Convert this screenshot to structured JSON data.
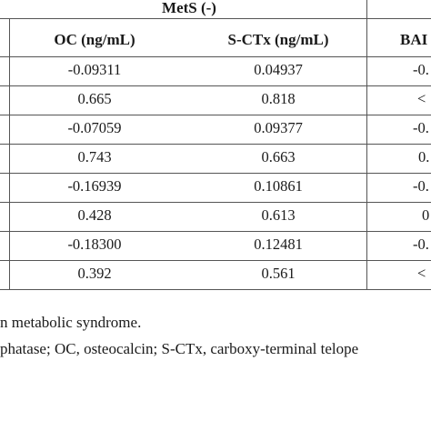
{
  "table": {
    "group_header": "MetS (-)",
    "columns": [
      "OC (ng/mL)",
      "S-CTx (ng/mL)",
      "BAI"
    ],
    "rows": [
      [
        "-0.09311",
        "0.04937",
        "-0."
      ],
      [
        "0.665",
        "0.818",
        "<"
      ],
      [
        "-0.07059",
        "0.09377",
        "-0."
      ],
      [
        "0.743",
        "0.663",
        "0."
      ],
      [
        "-0.16939",
        "0.10861",
        "-0."
      ],
      [
        "0.428",
        "0.613",
        "0"
      ],
      [
        "-0.18300",
        "0.12481",
        "-0."
      ],
      [
        "0.392",
        "0.561",
        "<"
      ]
    ]
  },
  "footnotes": [
    "n metabolic syndrome.",
    "phatase; OC, osteocalcin; S-CTx, carboxy-terminal telope"
  ]
}
